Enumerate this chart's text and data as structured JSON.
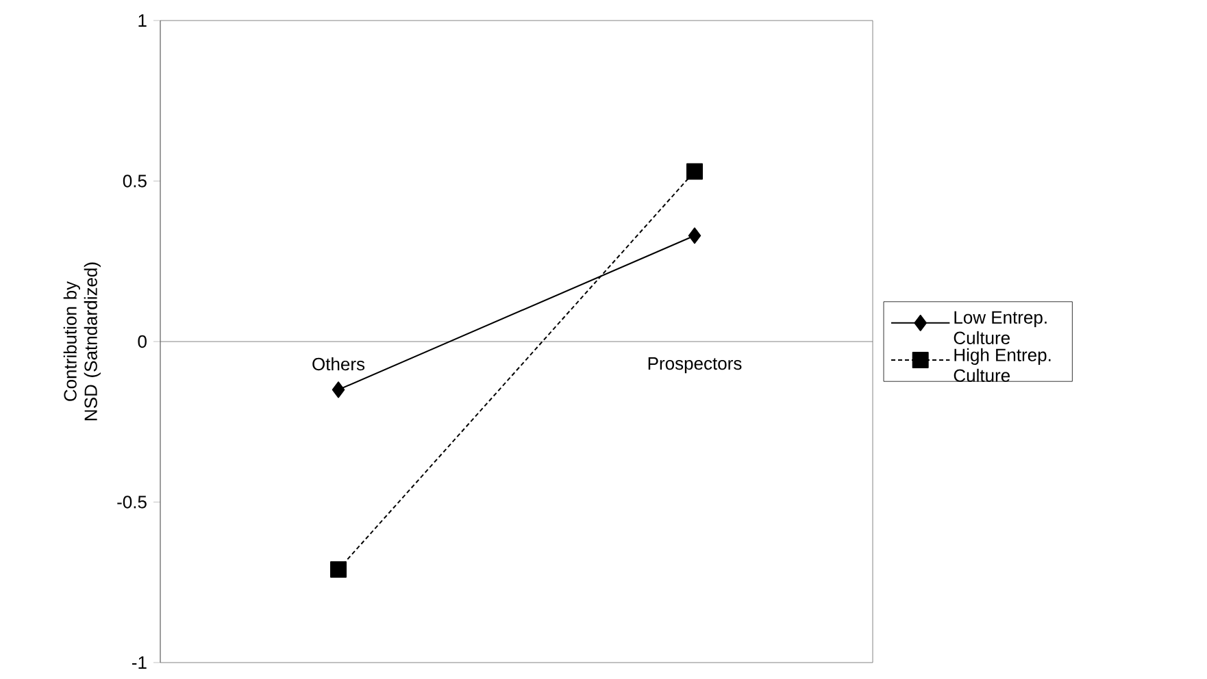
{
  "chart_data": {
    "type": "line",
    "ylabel": "Contribution by NSD (Satndardized)",
    "categories": [
      "Others",
      "Prospectors"
    ],
    "series": [
      {
        "name": "Low Entrep. Culture",
        "color": "#000000",
        "values": [
          -0.15,
          0.33
        ],
        "marker": "diamond",
        "line_style": "solid"
      },
      {
        "name": "High Entrep. Culture",
        "color": "#000000",
        "values": [
          -0.71,
          0.53
        ],
        "marker": "square",
        "line_style": "dashed"
      }
    ],
    "ylim": [
      -1,
      1
    ],
    "yticks": [
      -1,
      -0.5,
      0,
      0.5,
      1
    ],
    "grid": false,
    "legend": "right"
  }
}
